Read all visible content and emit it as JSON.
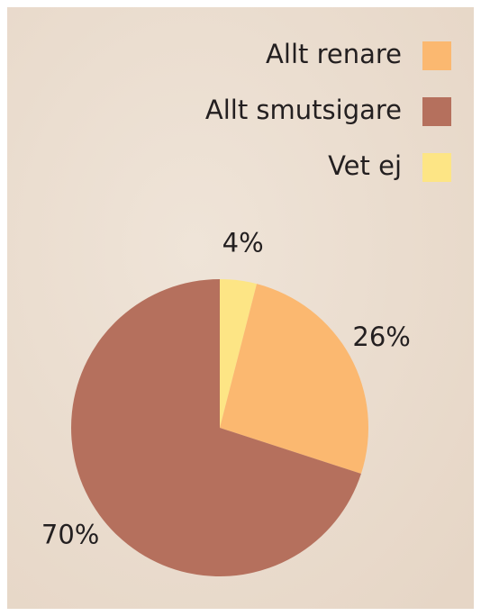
{
  "chart_data": {
    "type": "pie",
    "series": [
      {
        "name": "Allt renare",
        "color": "#fbb870",
        "values": [
          26
        ],
        "value_labels": [
          "26%"
        ]
      },
      {
        "name": "Allt smutsigare",
        "color": "#b5705d",
        "values": [
          70
        ],
        "value_labels": [
          "70%"
        ]
      },
      {
        "name": "Vet ej",
        "color": "#fde585",
        "values": [
          4
        ],
        "value_labels": [
          "4%"
        ]
      }
    ]
  }
}
